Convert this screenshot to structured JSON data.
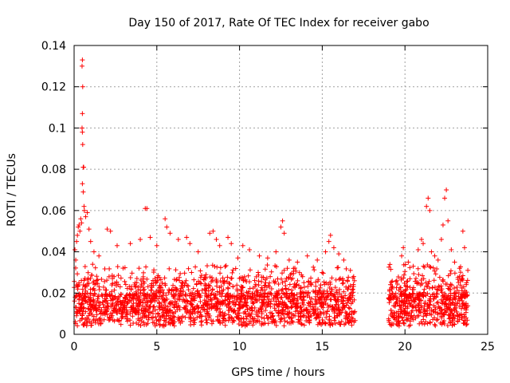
{
  "chart_data": {
    "type": "scatter",
    "title": "Day 150 of 2017, Rate Of TEC Index for receiver gabo",
    "xlabel": "GPS time / hours",
    "ylabel": "ROTI / TECUs",
    "xlim": [
      0,
      25
    ],
    "ylim": [
      0,
      0.14
    ],
    "x_ticks": [
      0,
      5,
      10,
      15,
      20,
      25
    ],
    "x_tick_labels": [
      "0",
      "5",
      "10",
      "15",
      "20",
      "25"
    ],
    "y_ticks": [
      0,
      0.02,
      0.04,
      0.06,
      0.08,
      0.1,
      0.12,
      0.14
    ],
    "y_tick_labels": [
      "0",
      "0.02",
      "0.04",
      "0.06",
      "0.08",
      "0.1",
      "0.12",
      "0.14"
    ],
    "grid": true,
    "marker": "+",
    "color": "#ff0000",
    "data_gap_hours": [
      17.0,
      19.0
    ],
    "series": [
      {
        "name": "ROTI",
        "points": [
          [
            0.05,
            0.041
          ],
          [
            0.1,
            0.036
          ],
          [
            0.15,
            0.045
          ],
          [
            0.2,
            0.048
          ],
          [
            0.25,
            0.052
          ],
          [
            0.3,
            0.053
          ],
          [
            0.35,
            0.05
          ],
          [
            0.4,
            0.056
          ],
          [
            0.45,
            0.054
          ],
          [
            0.48,
            0.13
          ],
          [
            0.5,
            0.133
          ],
          [
            0.52,
            0.12
          ],
          [
            0.5,
            0.107
          ],
          [
            0.48,
            0.1
          ],
          [
            0.5,
            0.098
          ],
          [
            0.52,
            0.092
          ],
          [
            0.55,
            0.081
          ],
          [
            0.58,
            0.081
          ],
          [
            0.5,
            0.073
          ],
          [
            0.55,
            0.069
          ],
          [
            0.6,
            0.062
          ],
          [
            0.62,
            0.06
          ],
          [
            0.7,
            0.057
          ],
          [
            0.8,
            0.059
          ],
          [
            0.9,
            0.051
          ],
          [
            1.0,
            0.045
          ],
          [
            1.2,
            0.04
          ],
          [
            1.5,
            0.038
          ],
          [
            2.0,
            0.051
          ],
          [
            2.2,
            0.05
          ],
          [
            2.6,
            0.043
          ],
          [
            3.4,
            0.044
          ],
          [
            4.0,
            0.046
          ],
          [
            4.3,
            0.061
          ],
          [
            4.4,
            0.061
          ],
          [
            4.6,
            0.047
          ],
          [
            5.0,
            0.043
          ],
          [
            5.5,
            0.056
          ],
          [
            5.6,
            0.052
          ],
          [
            5.8,
            0.049
          ],
          [
            6.3,
            0.046
          ],
          [
            6.8,
            0.047
          ],
          [
            7.0,
            0.044
          ],
          [
            7.5,
            0.04
          ],
          [
            8.2,
            0.049
          ],
          [
            8.4,
            0.05
          ],
          [
            8.6,
            0.046
          ],
          [
            8.8,
            0.043
          ],
          [
            9.3,
            0.047
          ],
          [
            9.5,
            0.044
          ],
          [
            9.9,
            0.037
          ],
          [
            10.2,
            0.043
          ],
          [
            10.6,
            0.041
          ],
          [
            11.2,
            0.038
          ],
          [
            11.7,
            0.037
          ],
          [
            12.2,
            0.04
          ],
          [
            12.5,
            0.052
          ],
          [
            12.6,
            0.055
          ],
          [
            12.7,
            0.049
          ],
          [
            13.0,
            0.036
          ],
          [
            13.5,
            0.035
          ],
          [
            14.1,
            0.038
          ],
          [
            14.7,
            0.036
          ],
          [
            15.2,
            0.04
          ],
          [
            15.4,
            0.045
          ],
          [
            15.5,
            0.048
          ],
          [
            15.7,
            0.042
          ],
          [
            16.0,
            0.039
          ],
          [
            16.3,
            0.036
          ],
          [
            16.7,
            0.031
          ],
          [
            16.9,
            0.028
          ],
          [
            19.2,
            0.022
          ],
          [
            19.5,
            0.026
          ],
          [
            19.8,
            0.038
          ],
          [
            19.9,
            0.042
          ],
          [
            20.2,
            0.035
          ],
          [
            20.5,
            0.033
          ],
          [
            20.8,
            0.041
          ],
          [
            21.0,
            0.046
          ],
          [
            21.1,
            0.044
          ],
          [
            21.3,
            0.062
          ],
          [
            21.4,
            0.066
          ],
          [
            21.5,
            0.06
          ],
          [
            21.6,
            0.04
          ],
          [
            21.8,
            0.038
          ],
          [
            22.0,
            0.036
          ],
          [
            22.2,
            0.046
          ],
          [
            22.3,
            0.053
          ],
          [
            22.4,
            0.066
          ],
          [
            22.5,
            0.07
          ],
          [
            22.6,
            0.055
          ],
          [
            22.8,
            0.041
          ],
          [
            23.0,
            0.035
          ],
          [
            23.3,
            0.032
          ],
          [
            23.5,
            0.05
          ],
          [
            23.6,
            0.042
          ],
          [
            23.8,
            0.031
          ]
        ]
      }
    ]
  }
}
